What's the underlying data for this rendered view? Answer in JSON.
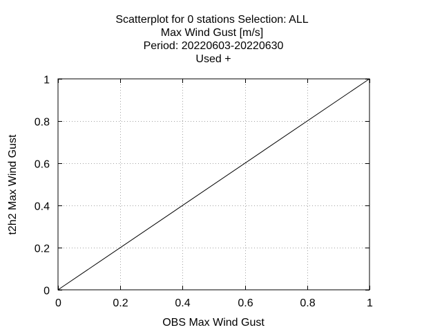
{
  "chart_data": {
    "type": "scatter",
    "title_lines": [
      "Scatterplot for    0 stations Selection: ALL",
      "Max Wind Gust [m/s]",
      "Period: 20220603-20220630",
      "Used   +"
    ],
    "xlabel": "OBS Max Wind Gust",
    "ylabel": "t2h2 Max Wind Gust",
    "xlim": [
      0,
      1
    ],
    "ylim": [
      0,
      1
    ],
    "x_ticks": [
      0,
      0.2,
      0.4,
      0.6,
      0.8,
      1
    ],
    "y_ticks": [
      0,
      0.2,
      0.4,
      0.6,
      0.8,
      1
    ],
    "x_tick_labels": [
      "0",
      "0.2",
      "0.4",
      "0.6",
      "0.8",
      "1"
    ],
    "y_tick_labels": [
      "0",
      "0.2",
      "0.4",
      "0.6",
      "0.8",
      "1"
    ],
    "grid": true,
    "grid_style": "dotted",
    "reference_line": {
      "x": [
        0,
        1
      ],
      "y": [
        0,
        1
      ]
    },
    "series": [],
    "colors": {
      "frame": "#000000",
      "grid": "#a0a0a0",
      "line": "#000000",
      "background": "#ffffff"
    }
  }
}
